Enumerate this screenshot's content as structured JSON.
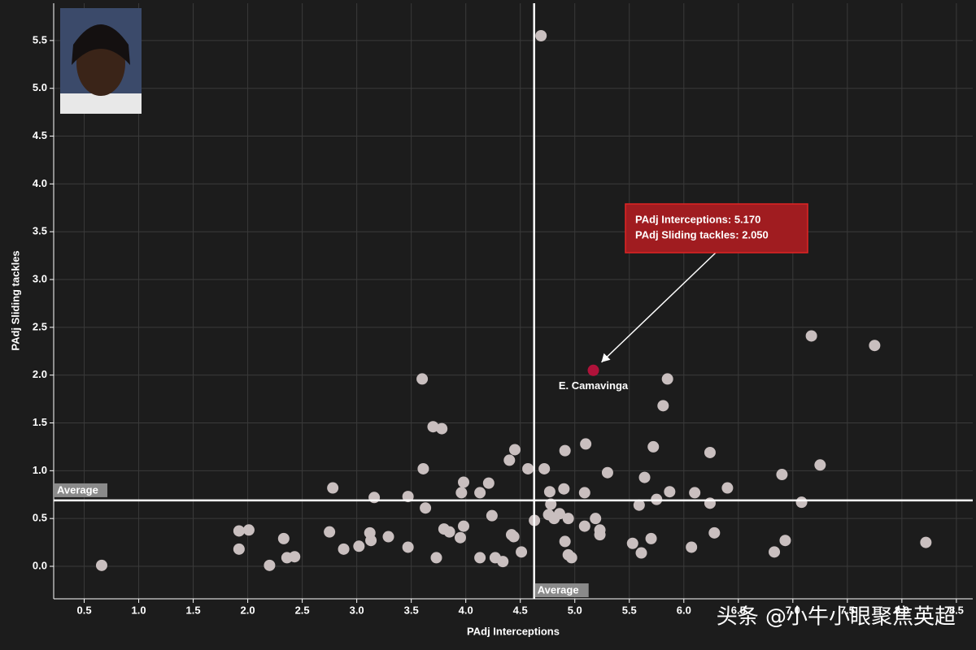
{
  "chart_data": {
    "type": "scatter",
    "x_label": "PAdj Interceptions",
    "y_label": "PAdj Sliding tackles",
    "xlim": [
      0.22,
      8.65
    ],
    "ylim": [
      -0.34,
      5.89
    ],
    "xticks": [
      0.5,
      {
        "value": 1,
        "label": "1.0"
      },
      1.5,
      {
        "value": 2,
        "label": "2.0"
      },
      2.5,
      {
        "value": 3,
        "label": "3.0"
      },
      3.5,
      {
        "value": 4,
        "label": "4.0"
      },
      4.5,
      {
        "value": 5,
        "label": "5.0"
      },
      5.5,
      {
        "value": 6,
        "label": "6.0"
      },
      6.5,
      {
        "value": 7,
        "label": "7.0"
      },
      7.5,
      {
        "value": 8,
        "label": "8.0"
      },
      8.5
    ],
    "yticks": [
      {
        "value": 0,
        "label": "0.0"
      },
      0.5,
      {
        "value": 1,
        "label": "1.0"
      },
      1.5,
      {
        "value": 2,
        "label": "2.0"
      },
      2.5,
      {
        "value": 3,
        "label": "3.0"
      },
      3.5,
      {
        "value": 4,
        "label": "4.0"
      },
      4.5,
      {
        "value": 5,
        "label": "5.0"
      },
      5.5
    ],
    "grid": true,
    "averages": {
      "x": 4.627,
      "y": 0.689,
      "x_label": "Average",
      "y_label": "Average"
    },
    "series": [
      {
        "color": "#c9bfbf",
        "x": [
          0.66,
          4.69,
          7.17,
          7.75,
          3.6,
          5.85,
          5.81,
          3.7,
          3.78,
          4.45,
          5.1,
          4.91,
          5.72,
          6.24,
          4.4,
          7.25,
          3.61,
          4.57,
          4.72,
          5.3,
          6.9,
          5.64,
          3.98,
          4.21,
          2.78,
          3.96,
          4.13,
          4.9,
          4.77,
          5.09,
          5.87,
          6.1,
          6.4,
          3.16,
          3.47,
          5.75,
          6.24,
          7.08,
          4.78,
          3.63,
          5.59,
          4.86,
          4.76,
          4.94,
          4.81,
          4.24,
          5.19,
          4.63,
          5.09,
          3.98,
          1.92,
          2.01,
          3.8,
          3.85,
          5.23,
          2.75,
          3.12,
          3.29,
          4.42,
          4.44,
          3.95,
          5.23,
          6.28,
          2.33,
          3.13,
          4.91,
          5.7,
          6.93,
          8.22,
          5.53,
          3.02,
          3.47,
          1.92,
          2.88,
          6.07,
          4.51,
          5.61,
          6.83,
          4.94,
          4.97,
          2.36,
          2.43,
          3.73,
          4.13,
          4.27,
          4.34,
          2.2
        ],
        "y": [
          0.01,
          5.55,
          2.41,
          2.31,
          1.96,
          1.96,
          1.68,
          1.46,
          1.44,
          1.22,
          1.28,
          1.21,
          1.25,
          1.19,
          1.11,
          1.06,
          1.02,
          1.02,
          1.02,
          0.98,
          0.96,
          0.93,
          0.88,
          0.87,
          0.82,
          0.77,
          0.77,
          0.81,
          0.78,
          0.77,
          0.78,
          0.77,
          0.82,
          0.72,
          0.73,
          0.7,
          0.66,
          0.67,
          0.65,
          0.61,
          0.64,
          0.55,
          0.54,
          0.5,
          0.5,
          0.53,
          0.5,
          0.48,
          0.42,
          0.42,
          0.37,
          0.38,
          0.39,
          0.36,
          0.38,
          0.36,
          0.35,
          0.31,
          0.33,
          0.31,
          0.3,
          0.33,
          0.35,
          0.29,
          0.27,
          0.26,
          0.29,
          0.27,
          0.25,
          0.24,
          0.21,
          0.2,
          0.18,
          0.18,
          0.2,
          0.15,
          0.14,
          0.15,
          0.12,
          0.09,
          0.09,
          0.1,
          0.09,
          0.09,
          0.09,
          0.05,
          0.01
        ]
      },
      {
        "name": "E. Camavinga",
        "color": "#b0123a",
        "x": [
          5.17
        ],
        "y": [
          2.05
        ]
      }
    ],
    "annotation": [
      "PAdj Interceptions: 5.170",
      "PAdj Sliding tackles: 2.050"
    ],
    "watermark": "头条 @小牛小眼聚焦英超"
  }
}
